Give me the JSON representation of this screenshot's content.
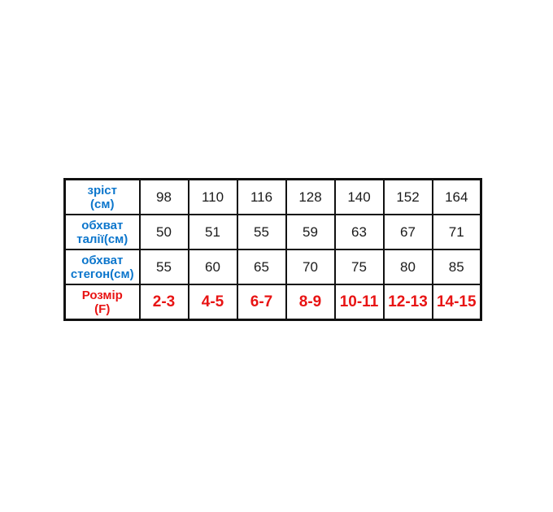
{
  "colors": {
    "page_background": "#ffffff",
    "header_cell_background": "#e8e8e8",
    "header_text_blue": "#0c76cc",
    "size_text_red": "#e81414",
    "value_text_black": "#1b1b1b",
    "grid_border_black": "#111111"
  },
  "table": {
    "rows": [
      {
        "label_lines": [
          "зріст",
          "(см)"
        ],
        "values": [
          "98",
          "110",
          "116",
          "128",
          "140",
          "152",
          "164"
        ]
      },
      {
        "label_lines": [
          "обхват",
          "талії(см)"
        ],
        "values": [
          "50",
          "51",
          "55",
          "59",
          "63",
          "67",
          "71"
        ]
      },
      {
        "label_lines": [
          "обхват",
          "стегон(см)"
        ],
        "values": [
          "55",
          "60",
          "65",
          "70",
          "75",
          "80",
          "85"
        ]
      },
      {
        "label_lines": [
          "Розмір",
          "(F)"
        ],
        "values": [
          "2-3",
          "4-5",
          "6-7",
          "8-9",
          "10-11",
          "12-13",
          "14-15"
        ]
      }
    ]
  },
  "chart_data": {
    "type": "table",
    "row_headers": [
      "зріст (см)",
      "обхват талії(см)",
      "обхват стегон(см)",
      "Розмір (F)"
    ],
    "columns": [
      {
        "height_cm": 98,
        "waist_cm": 50,
        "hips_cm": 55,
        "size_f": "2-3"
      },
      {
        "height_cm": 110,
        "waist_cm": 51,
        "hips_cm": 60,
        "size_f": "4-5"
      },
      {
        "height_cm": 116,
        "waist_cm": 55,
        "hips_cm": 65,
        "size_f": "6-7"
      },
      {
        "height_cm": 128,
        "waist_cm": 59,
        "hips_cm": 70,
        "size_f": "8-9"
      },
      {
        "height_cm": 140,
        "waist_cm": 63,
        "hips_cm": 75,
        "size_f": "10-11"
      },
      {
        "height_cm": 152,
        "waist_cm": 67,
        "hips_cm": 80,
        "size_f": "12-13"
      },
      {
        "height_cm": 164,
        "waist_cm": 71,
        "hips_cm": 85,
        "size_f": "14-15"
      }
    ],
    "layout": "rows are measurements, columns are sizes; header column shaded gray; measurement labels blue bold; size row red bold; grid black"
  }
}
